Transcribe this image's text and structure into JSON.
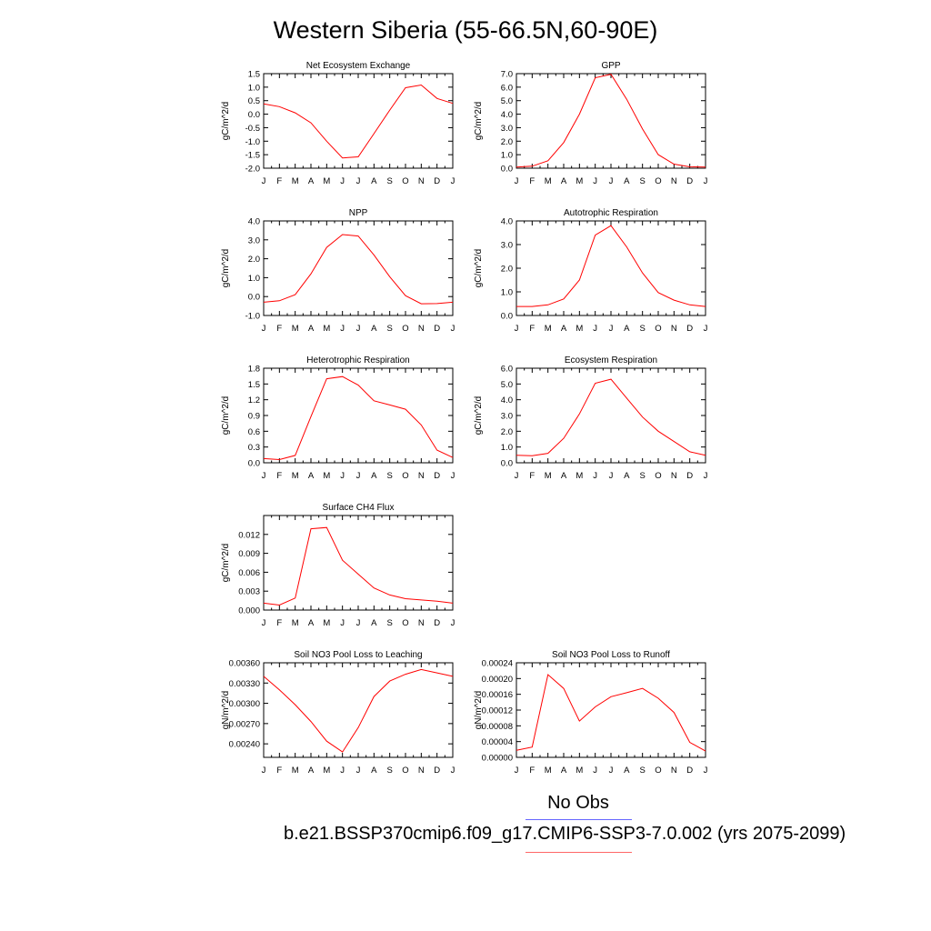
{
  "title": "Western Siberia (55-66.5N,60-90E)",
  "legend": {
    "obs_label": "No Obs",
    "obs_color": "#6666ff",
    "case_label": "b.e21.BSSP370cmip6.f09_g17.CMIP6-SSP3-7.0.002 (yrs 2075-2099)",
    "case_color": "#ff0000"
  },
  "chart_data": [
    {
      "type": "line",
      "title": "Net Ecosystem Exchange",
      "ylabel": "gC/m^2/d",
      "x": [
        "J",
        "F",
        "M",
        "A",
        "M",
        "J",
        "J",
        "A",
        "S",
        "O",
        "N",
        "D",
        "J"
      ],
      "ylim": [
        -2.0,
        1.5
      ],
      "yticks": [
        "1.5",
        "1.0",
        "0.5",
        "0.0",
        "-0.5",
        "-1.0",
        "-1.5",
        "-2.0"
      ],
      "series": [
        {
          "values": [
            0.38,
            0.28,
            0.05,
            -0.32,
            -1.0,
            -1.62,
            -1.58,
            -0.72,
            0.15,
            0.98,
            1.08,
            0.58,
            0.4
          ]
        }
      ]
    },
    {
      "type": "line",
      "title": "GPP",
      "ylabel": "gC/m^2/d",
      "x": [
        "J",
        "F",
        "M",
        "A",
        "M",
        "J",
        "J",
        "A",
        "S",
        "O",
        "N",
        "D",
        "J"
      ],
      "ylim": [
        0.0,
        7.0
      ],
      "yticks": [
        "7.0",
        "6.0",
        "5.0",
        "4.0",
        "3.0",
        "2.0",
        "1.0",
        "0.0"
      ],
      "series": [
        {
          "values": [
            0.08,
            0.15,
            0.55,
            1.9,
            4.0,
            6.7,
            6.95,
            5.1,
            2.9,
            1.0,
            0.3,
            0.1,
            0.08
          ]
        }
      ]
    },
    {
      "type": "line",
      "title": "NPP",
      "ylabel": "gC/m^2/d",
      "x": [
        "J",
        "F",
        "M",
        "A",
        "M",
        "J",
        "J",
        "A",
        "S",
        "O",
        "N",
        "D",
        "J"
      ],
      "ylim": [
        -1.0,
        4.0
      ],
      "yticks": [
        "4.0",
        "3.0",
        "2.0",
        "1.0",
        "0.0",
        "-1.0"
      ],
      "series": [
        {
          "values": [
            -0.3,
            -0.22,
            0.1,
            1.2,
            2.6,
            3.28,
            3.2,
            2.2,
            1.05,
            0.05,
            -0.38,
            -0.37,
            -0.3
          ]
        }
      ]
    },
    {
      "type": "line",
      "title": "Autotrophic Respiration",
      "ylabel": "gC/m^2/d",
      "x": [
        "J",
        "F",
        "M",
        "A",
        "M",
        "J",
        "J",
        "A",
        "S",
        "O",
        "N",
        "D",
        "J"
      ],
      "ylim": [
        0.0,
        4.0
      ],
      "yticks": [
        "4.0",
        "3.0",
        "2.0",
        "1.0",
        "0.0"
      ],
      "series": [
        {
          "values": [
            0.38,
            0.38,
            0.45,
            0.7,
            1.5,
            3.4,
            3.8,
            2.9,
            1.8,
            0.97,
            0.65,
            0.45,
            0.38
          ]
        }
      ]
    },
    {
      "type": "line",
      "title": "Heterotrophic Respiration",
      "ylabel": "gC/m^2/d",
      "x": [
        "J",
        "F",
        "M",
        "A",
        "M",
        "J",
        "J",
        "A",
        "S",
        "O",
        "N",
        "D",
        "J"
      ],
      "ylim": [
        0.0,
        1.8
      ],
      "yticks": [
        "1.8",
        "1.5",
        "1.2",
        "0.9",
        "0.6",
        "0.3",
        "0.0"
      ],
      "series": [
        {
          "values": [
            0.08,
            0.06,
            0.14,
            0.88,
            1.6,
            1.64,
            1.48,
            1.18,
            1.1,
            1.02,
            0.72,
            0.24,
            0.1
          ]
        }
      ]
    },
    {
      "type": "line",
      "title": "Ecosystem Respiration",
      "ylabel": "gC/m^2/d",
      "x": [
        "J",
        "F",
        "M",
        "A",
        "M",
        "J",
        "J",
        "A",
        "S",
        "O",
        "N",
        "D",
        "J"
      ],
      "ylim": [
        0.0,
        6.0
      ],
      "yticks": [
        "6.0",
        "5.0",
        "4.0",
        "3.0",
        "2.0",
        "1.0",
        "0.0"
      ],
      "series": [
        {
          "values": [
            0.48,
            0.45,
            0.6,
            1.55,
            3.1,
            5.05,
            5.3,
            4.1,
            2.9,
            2.0,
            1.35,
            0.7,
            0.48
          ]
        }
      ]
    },
    {
      "type": "line",
      "title": "Surface CH4 Flux",
      "ylabel": "gC/m^2/d",
      "x": [
        "J",
        "F",
        "M",
        "A",
        "M",
        "J",
        "J",
        "A",
        "S",
        "O",
        "N",
        "D",
        "J"
      ],
      "ylim": [
        0.0,
        0.015
      ],
      "yticks": [
        "0.012",
        "0.009",
        "0.006",
        "0.003",
        "0.000"
      ],
      "series": [
        {
          "values": [
            0.0011,
            0.0008,
            0.0019,
            0.0129,
            0.0131,
            0.0079,
            0.0057,
            0.0035,
            0.0024,
            0.0018,
            0.0016,
            0.0014,
            0.0011
          ]
        }
      ]
    },
    {
      "type": "line",
      "title": "Soil NO3 Pool Loss to Leaching",
      "ylabel": "gN/m^2/d",
      "x": [
        "J",
        "F",
        "M",
        "A",
        "M",
        "J",
        "J",
        "A",
        "S",
        "O",
        "N",
        "D",
        "J"
      ],
      "ylim": [
        0.0022,
        0.0036
      ],
      "yticks": [
        "0.00360",
        "0.00330",
        "0.00300",
        "0.00270",
        "0.00240"
      ],
      "series": [
        {
          "values": [
            0.0034,
            0.0032,
            0.00298,
            0.00273,
            0.00244,
            0.00228,
            0.00264,
            0.0031,
            0.00333,
            0.00343,
            0.0035,
            0.00345,
            0.0034
          ]
        }
      ]
    },
    {
      "type": "line",
      "title": "Soil NO3 Pool Loss to Runoff",
      "ylabel": "gN/m^2/d",
      "x": [
        "J",
        "F",
        "M",
        "A",
        "M",
        "J",
        "J",
        "A",
        "S",
        "O",
        "N",
        "D",
        "J"
      ],
      "ylim": [
        0.0,
        0.00024
      ],
      "yticks": [
        "0.00024",
        "0.00020",
        "0.00016",
        "0.00012",
        "0.00008",
        "0.00004",
        "0.00000"
      ],
      "series": [
        {
          "values": [
            1.8e-05,
            2.6e-05,
            0.00021,
            0.000175,
            9.2e-05,
            0.000128,
            0.000154,
            0.000164,
            0.000175,
            0.00015,
            0.000114,
            3.8e-05,
            1.6e-05
          ]
        }
      ]
    }
  ]
}
